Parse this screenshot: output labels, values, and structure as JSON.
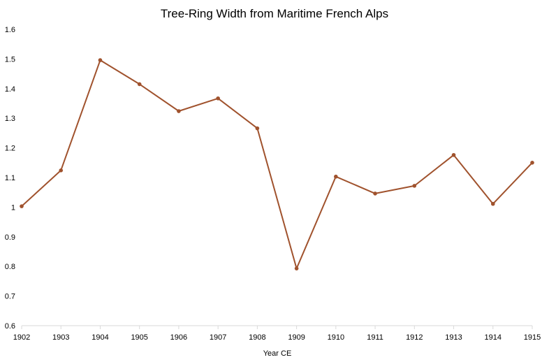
{
  "chart_data": {
    "type": "line",
    "title": "Tree-Ring Width from Maritime French Alps",
    "xlabel": "Year CE",
    "ylabel": "",
    "x": [
      1902,
      1903,
      1904,
      1905,
      1906,
      1907,
      1908,
      1909,
      1910,
      1911,
      1912,
      1913,
      1914,
      1915
    ],
    "series": [
      {
        "values": [
          1.003,
          1.124,
          1.496,
          1.415,
          1.324,
          1.367,
          1.266,
          0.793,
          1.103,
          1.046,
          1.072,
          1.176,
          1.011,
          1.15
        ]
      }
    ],
    "ylim": [
      0.6,
      1.6
    ],
    "yticks": [
      0.6,
      0.7,
      0.8,
      0.9,
      1,
      1.1,
      1.2,
      1.3,
      1.4,
      1.5,
      1.6
    ],
    "grid": false,
    "legend": "none",
    "line_color": "#A0522D",
    "marker_color": "#A0522D",
    "axis_color": "#D9D9D9"
  }
}
